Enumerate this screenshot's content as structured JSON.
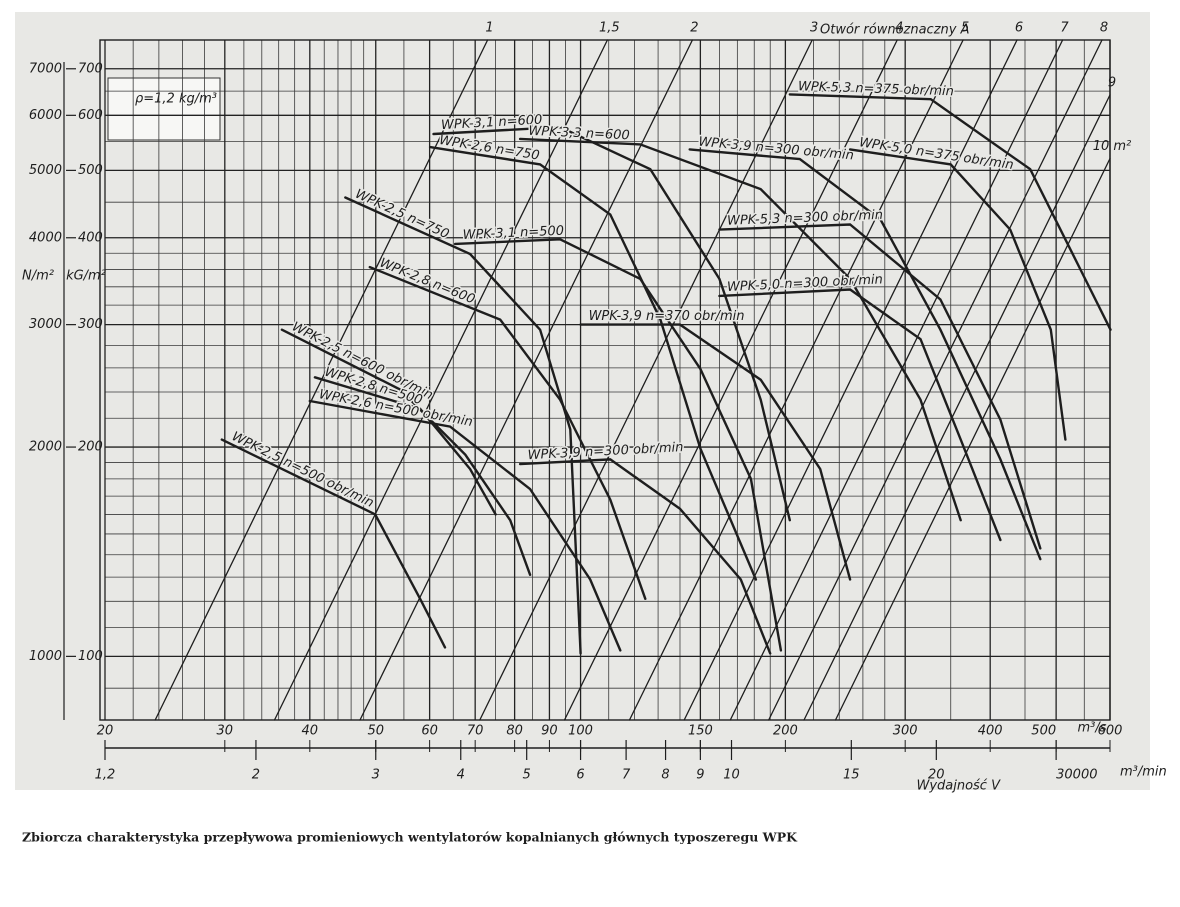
{
  "chart_data": {
    "type": "line",
    "title": "Zbiorcza charakterystyka przepływowa promieniowych wentylatorów kopalnianych głównych typoszeregu WPK",
    "orifice_label": "Otwór równoznaczny A",
    "density_label": "ρ=1,2 kg/m³",
    "y_label": "kG/m²",
    "y2_label": "N/m²",
    "x_label": "Wydajność V",
    "x_unit": "m³/s",
    "x2_unit": "m³/min",
    "xscale": "log",
    "yscale": "log",
    "grid": true,
    "color": "#1e1e1e",
    "xlim": [
      20,
      600
    ],
    "xticks": [
      20,
      30,
      40,
      50,
      60,
      70,
      80,
      90,
      100,
      150,
      200,
      300,
      400,
      500,
      600
    ],
    "x2lim": [
      1.2,
      36
    ],
    "x2ticks": [
      {
        "value": 1.2,
        "label": "1,2"
      },
      2,
      3,
      4,
      5,
      6,
      7,
      8,
      9,
      10,
      15,
      20,
      {
        "value": 30,
        "label": "30000"
      }
    ],
    "ylim": [
      81,
      770
    ],
    "yticks": [
      100,
      200,
      300,
      400,
      500,
      600,
      700
    ],
    "y2lim": [
      810,
      7700
    ],
    "y2ticks": [
      1000,
      2000,
      3000,
      4000,
      5000,
      6000,
      7000
    ],
    "xgrid": [
      22,
      24,
      26,
      28,
      32,
      34,
      36,
      38,
      42,
      44,
      46,
      48,
      55,
      65,
      75,
      85,
      95,
      110,
      120,
      130,
      140,
      160,
      170,
      180,
      190,
      220,
      240,
      260,
      280,
      350,
      450,
      550
    ],
    "ygrid": [
      90,
      110,
      120,
      130,
      140,
      150,
      160,
      170,
      180,
      190,
      220,
      240,
      260,
      280,
      320,
      340,
      360,
      380,
      450,
      550,
      650
    ],
    "series": [
      {
        "name": "WPK-2,5 n=500 obr/min",
        "x": [
          29.7,
          49.9,
          58.1,
          63.2
        ],
        "values": [
          205,
          160,
          121,
          103
        ]
      },
      {
        "name": "WPK-2,5 n=600 obr/min",
        "x": [
          36.4,
          54.3,
          67.7,
          78.8,
          84.3
        ],
        "values": [
          295,
          242,
          195,
          157,
          131
        ]
      },
      {
        "name": "WPK-2,8 n=500",
        "x": [
          40.7,
          58.1,
          68.8,
          75
        ],
        "values": [
          252,
          227,
          186,
          160
        ]
      },
      {
        "name": "WPK-2,6 n=500 obr/min",
        "x": [
          40,
          64.3,
          84.3,
          103.3,
          114.4
        ],
        "values": [
          233,
          214,
          174,
          129,
          102
        ]
      },
      {
        "name": "WPK-2,5 n=750",
        "x": [
          45.1,
          68.8,
          87.2,
          96.6,
          100
        ],
        "values": [
          457,
          379,
          295,
          212,
          101
        ]
      },
      {
        "name": "WPK-2,8 n=600",
        "x": [
          49,
          76.2,
          93.3,
          110.6,
          124.5
        ],
        "values": [
          363,
          305,
          234,
          168,
          121
        ]
      },
      {
        "name": "WPK-2,6 n=750",
        "x": [
          60.1,
          87.2,
          110.6,
          131,
          150,
          181
        ],
        "values": [
          540,
          510,
          432,
          305,
          199,
          129
        ]
      },
      {
        "name": "WPK-3,1 n=600",
        "x": [
          60.8,
          93.3,
          126.6,
          160,
          184,
          203
        ],
        "values": [
          564,
          577,
          502,
          349,
          234,
          157
        ]
      },
      {
        "name": "WPK-3,1 n=500",
        "x": [
          65.4,
          93.3,
          122.4,
          150,
          178,
          197
        ],
        "values": [
          392,
          398,
          349,
          259,
          180,
          102
        ]
      },
      {
        "name": "WPK-3,3 n=600",
        "x": [
          81.5,
          122.4,
          184,
          249,
          316,
          362
        ],
        "values": [
          555,
          545,
          470,
          349,
          234,
          157
        ]
      },
      {
        "name": "WPK-3,9 n=300 obr/min",
        "x": [
          81.5,
          110.6,
          140,
          172,
          190
        ],
        "values": [
          189,
          192,
          163,
          129,
          101
        ]
      },
      {
        "name": "WPK-3,9 n=370 obr/min",
        "x": [
          100,
          140,
          184,
          225,
          249
        ],
        "values": [
          300,
          300,
          250,
          186,
          129
        ]
      },
      {
        "name": "WPK-3,9 n=300 obr/min",
        "x": [
          144.7,
          210,
          276,
          338,
          414,
          474
        ],
        "values": [
          536,
          519,
          425,
          295,
          192,
          138
        ]
      },
      {
        "name": "WPK-5,3 n=375 obr/min",
        "x": [
          203,
          327,
          458,
          543,
          601
        ],
        "values": [
          643,
          633,
          502,
          360,
          295
        ]
      },
      {
        "name": "WPK-5,0 n=375 obr/min",
        "x": [
          249,
          350,
          428,
          491,
          516
        ],
        "values": [
          536,
          510,
          411,
          295,
          205
        ]
      },
      {
        "name": "WPK-5,3 n=300 obr/min",
        "x": [
          160,
          249,
          338,
          414,
          474
        ],
        "values": [
          411,
          418,
          326,
          219,
          143
        ]
      },
      {
        "name": "WPK-5,0 n=300 obr/min",
        "x": [
          160,
          249,
          316,
          362,
          414
        ],
        "values": [
          330,
          337,
          286,
          205,
          147
        ]
      }
    ],
    "orifice_lines": [
      {
        "name": "1",
        "x": [
          23.7,
          73.0
        ],
        "values": [
          81,
          770
        ]
      },
      {
        "name": "1,5",
        "x": [
          35.5,
          109.5
        ],
        "values": [
          81,
          770
        ]
      },
      {
        "name": "2",
        "x": [
          47.4,
          146
        ],
        "values": [
          81,
          770
        ]
      },
      {
        "name": "3",
        "x": [
          71.1,
          219
        ],
        "values": [
          81,
          770
        ]
      },
      {
        "name": "4",
        "x": [
          94.7,
          292
        ],
        "values": [
          81,
          770
        ]
      },
      {
        "name": "5",
        "x": [
          118,
          365
        ],
        "values": [
          81,
          770
        ]
      },
      {
        "name": "6",
        "x": [
          142,
          438
        ],
        "values": [
          81,
          770
        ]
      },
      {
        "name": "7",
        "x": [
          166,
          511
        ],
        "values": [
          81,
          770
        ]
      },
      {
        "name": "8",
        "x": [
          189,
          584
        ],
        "values": [
          81,
          770
        ]
      },
      {
        "name": "9",
        "x": [
          213,
          600
        ],
        "values": [
          81,
          642
        ]
      },
      {
        "name": "10 m²",
        "x": [
          237,
          600
        ],
        "values": [
          81,
          520
        ]
      }
    ]
  }
}
